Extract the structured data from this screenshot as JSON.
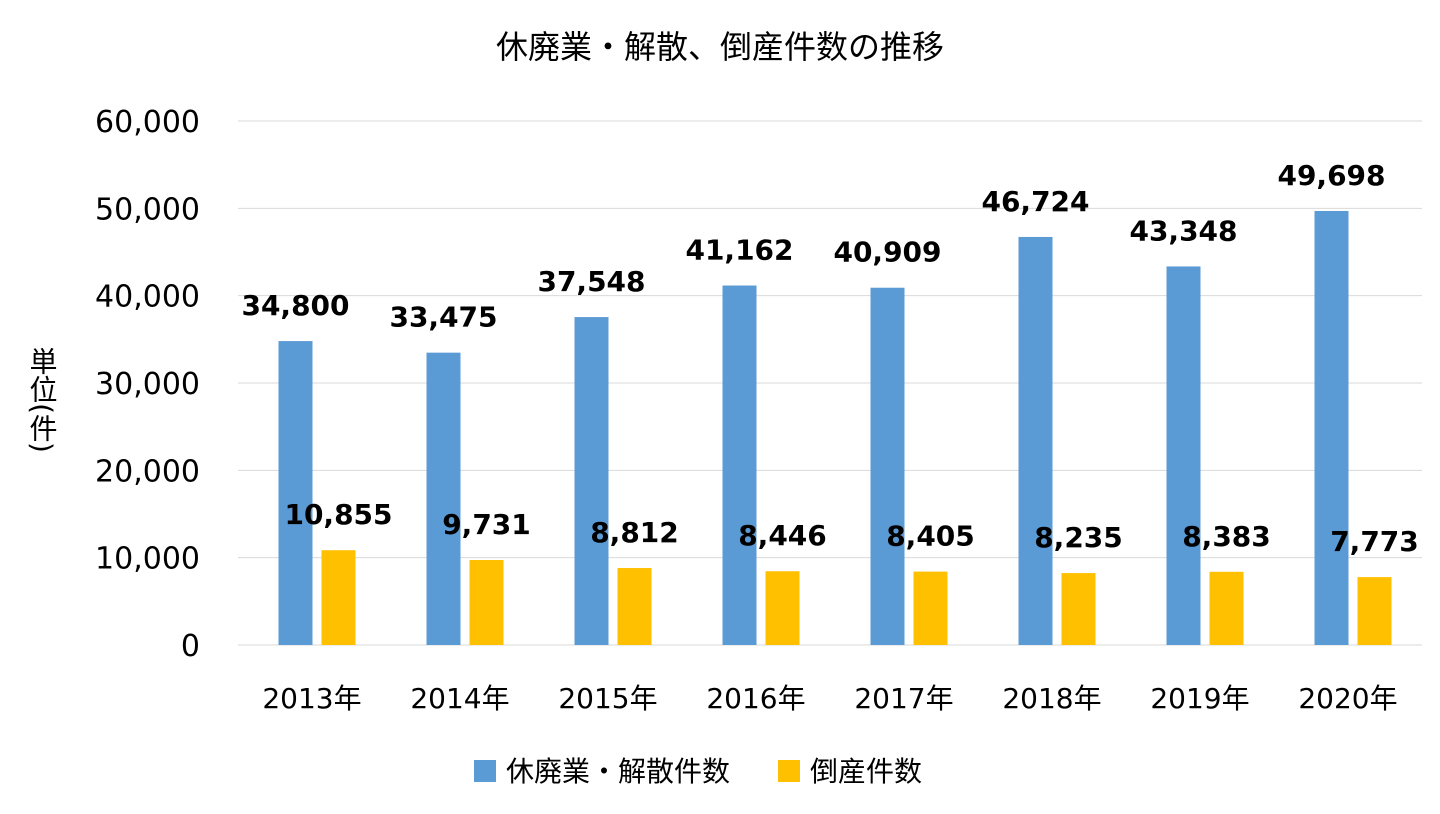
{
  "chart_data": {
    "type": "bar",
    "title": "休廃業・解散、倒産件数の推移",
    "ylabel": "単位(件)",
    "xlabel": "",
    "categories": [
      "2013年",
      "2014年",
      "2015年",
      "2016年",
      "2017年",
      "2018年",
      "2019年",
      "2020年"
    ],
    "series": [
      {
        "name": "休廃業・解散件数",
        "color": "#5B9BD5",
        "values": [
          34800,
          33475,
          37548,
          41162,
          40909,
          46724,
          43348,
          49698
        ]
      },
      {
        "name": "倒産件数",
        "color": "#FFC000",
        "values": [
          10855,
          9731,
          8812,
          8446,
          8405,
          8235,
          8383,
          7773
        ]
      }
    ],
    "ylim": [
      0,
      60000
    ],
    "yticks": [
      0,
      10000,
      20000,
      30000,
      40000,
      50000,
      60000
    ],
    "ytick_labels": [
      "0",
      "10,000",
      "20,000",
      "30,000",
      "40,000",
      "50,000",
      "60,000"
    ],
    "grid": true,
    "legend": "bottom",
    "data_labels": true
  }
}
